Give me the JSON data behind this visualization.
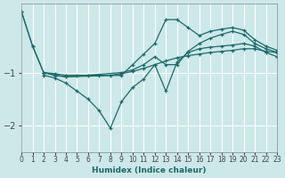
{
  "xlabel": "Humidex (Indice chaleur)",
  "ylabel": "",
  "xlim": [
    0,
    23
  ],
  "ylim": [
    -2.5,
    0.3
  ],
  "yticks": [
    -2,
    -1
  ],
  "xticks": [
    0,
    1,
    2,
    3,
    4,
    5,
    6,
    7,
    8,
    9,
    10,
    11,
    12,
    13,
    14,
    15,
    16,
    17,
    18,
    19,
    20,
    21,
    22,
    23
  ],
  "background_color": "#cce8e8",
  "grid_color": "#ffffff",
  "line_color": "#1a6b6b",
  "lines": [
    {
      "x": [
        0,
        1,
        2,
        3,
        4,
        9,
        10,
        11,
        12,
        13,
        14,
        15,
        16,
        17,
        18,
        19,
        20,
        21,
        22,
        23
      ],
      "y": [
        0.15,
        -0.5,
        -1.0,
        -1.05,
        -1.08,
        -1.0,
        -0.95,
        -0.85,
        -0.7,
        -0.85,
        -0.85,
        -0.6,
        -0.45,
        -0.35,
        -0.28,
        -0.22,
        -0.28,
        -0.45,
        -0.55,
        -0.62
      ]
    },
    {
      "x": [
        0,
        1,
        2,
        3,
        4,
        9,
        10,
        11,
        12,
        13,
        14,
        15,
        16,
        17,
        18,
        19,
        20,
        21,
        22,
        23
      ],
      "y": [
        0.15,
        -0.5,
        -1.0,
        -1.05,
        -1.08,
        -1.05,
        -0.85,
        -0.65,
        -0.45,
        0.0,
        0.0,
        -0.15,
        -0.3,
        -0.22,
        -0.18,
        -0.15,
        -0.2,
        -0.38,
        -0.5,
        -0.58
      ]
    },
    {
      "x": [
        2,
        3,
        4,
        5,
        6,
        7,
        8,
        9,
        10,
        11,
        12,
        13,
        14,
        15,
        16,
        17,
        18,
        19,
        20,
        21,
        22,
        23
      ],
      "y": [
        -1.0,
        -1.02,
        -1.05,
        -1.05,
        -1.05,
        -1.05,
        -1.05,
        -1.02,
        -0.98,
        -0.92,
        -0.85,
        -0.78,
        -0.72,
        -0.68,
        -0.65,
        -0.62,
        -0.6,
        -0.58,
        -0.55,
        -0.55,
        -0.6,
        -0.62
      ]
    },
    {
      "comment": "Line 4: starts x=2 at -1.05, goes down: x=3 -1.1, x=4 -1.2, x=5 -1.35, x=6 -1.5, x=7 -1.72, x=8 -2.05, then up x=9 -1.55, x=10 -1.28, x=11 -1.12, x=12 -0.85, x=13 -1.35, x=14 -0.8, then up slowly",
      "x": [
        2,
        3,
        4,
        5,
        6,
        7,
        8,
        9,
        10,
        11,
        12,
        13,
        14,
        15,
        16,
        17,
        18,
        19,
        20,
        21,
        22,
        23
      ],
      "y": [
        -1.05,
        -1.1,
        -1.2,
        -1.35,
        -1.5,
        -1.72,
        -2.05,
        -1.55,
        -1.28,
        -1.12,
        -0.85,
        -1.35,
        -0.8,
        -0.62,
        -0.55,
        -0.52,
        -0.5,
        -0.48,
        -0.45,
        -0.5,
        -0.62,
        -0.7
      ]
    }
  ]
}
